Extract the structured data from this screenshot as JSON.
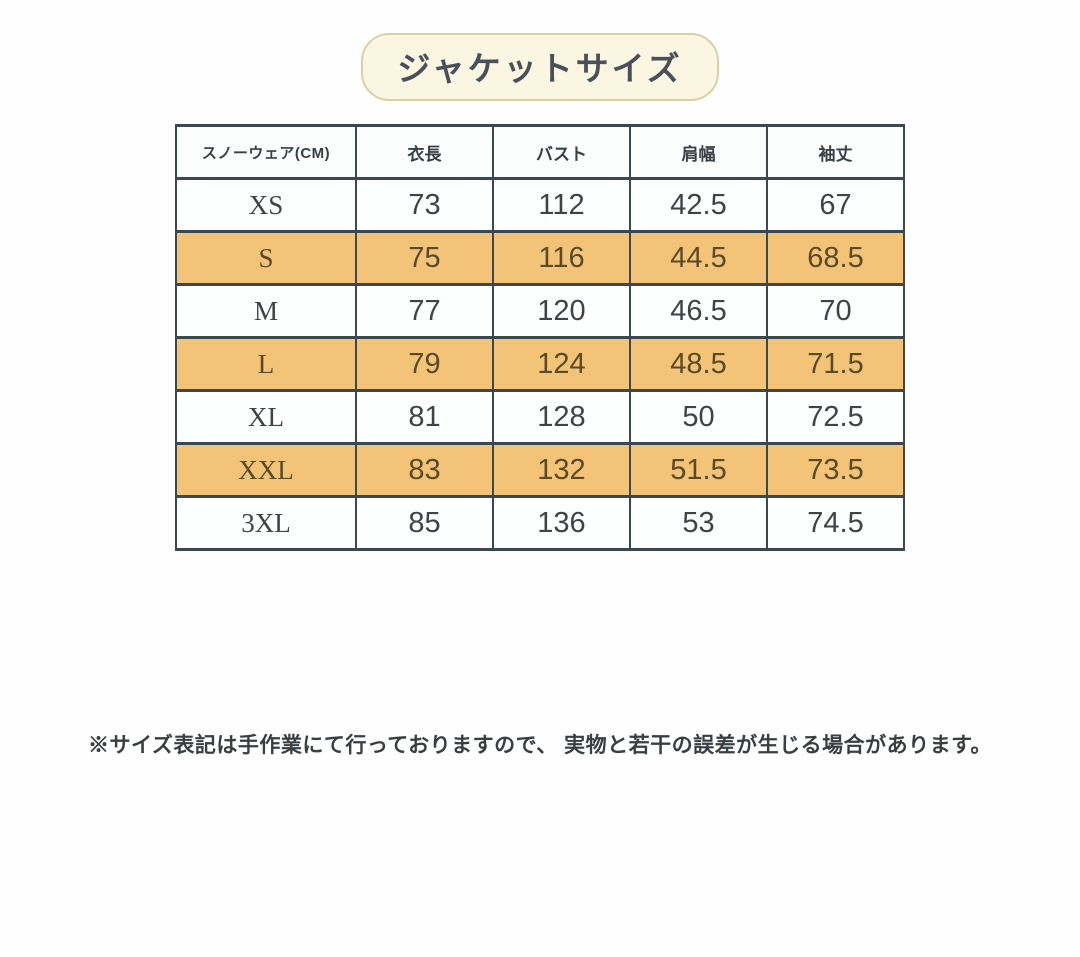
{
  "title": {
    "text": "ジャケットサイズ",
    "pill_bg": "#fbf6e2",
    "pill_border": "#d8d0a6"
  },
  "table": {
    "border_color": "#3c4850",
    "highlight_color": "#f3c377",
    "highlight_text_color": "#5a4a28",
    "unit_note": "スノーウェア(CM)",
    "columns": [
      "衣長",
      "バスト",
      "肩幅",
      "袖丈"
    ],
    "rows": [
      {
        "size": "XS",
        "values": [
          "73",
          "112",
          "42.5",
          "67"
        ],
        "highlight": false
      },
      {
        "size": "S",
        "values": [
          "75",
          "116",
          "44.5",
          "68.5"
        ],
        "highlight": true
      },
      {
        "size": "M",
        "values": [
          "77",
          "120",
          "46.5",
          "70"
        ],
        "highlight": false
      },
      {
        "size": "L",
        "values": [
          "79",
          "124",
          "48.5",
          "71.5"
        ],
        "highlight": true
      },
      {
        "size": "XL",
        "values": [
          "81",
          "128",
          "50",
          "72.5"
        ],
        "highlight": false
      },
      {
        "size": "XXL",
        "values": [
          "83",
          "132",
          "51.5",
          "73.5"
        ],
        "highlight": true
      },
      {
        "size": "3XL",
        "values": [
          "85",
          "136",
          "53",
          "74.5"
        ],
        "highlight": false
      }
    ]
  },
  "footnote": {
    "text": "※サイズ表記は手作業にて行っておりますので、 実物と若干の誤差が生じる場合があります。"
  }
}
